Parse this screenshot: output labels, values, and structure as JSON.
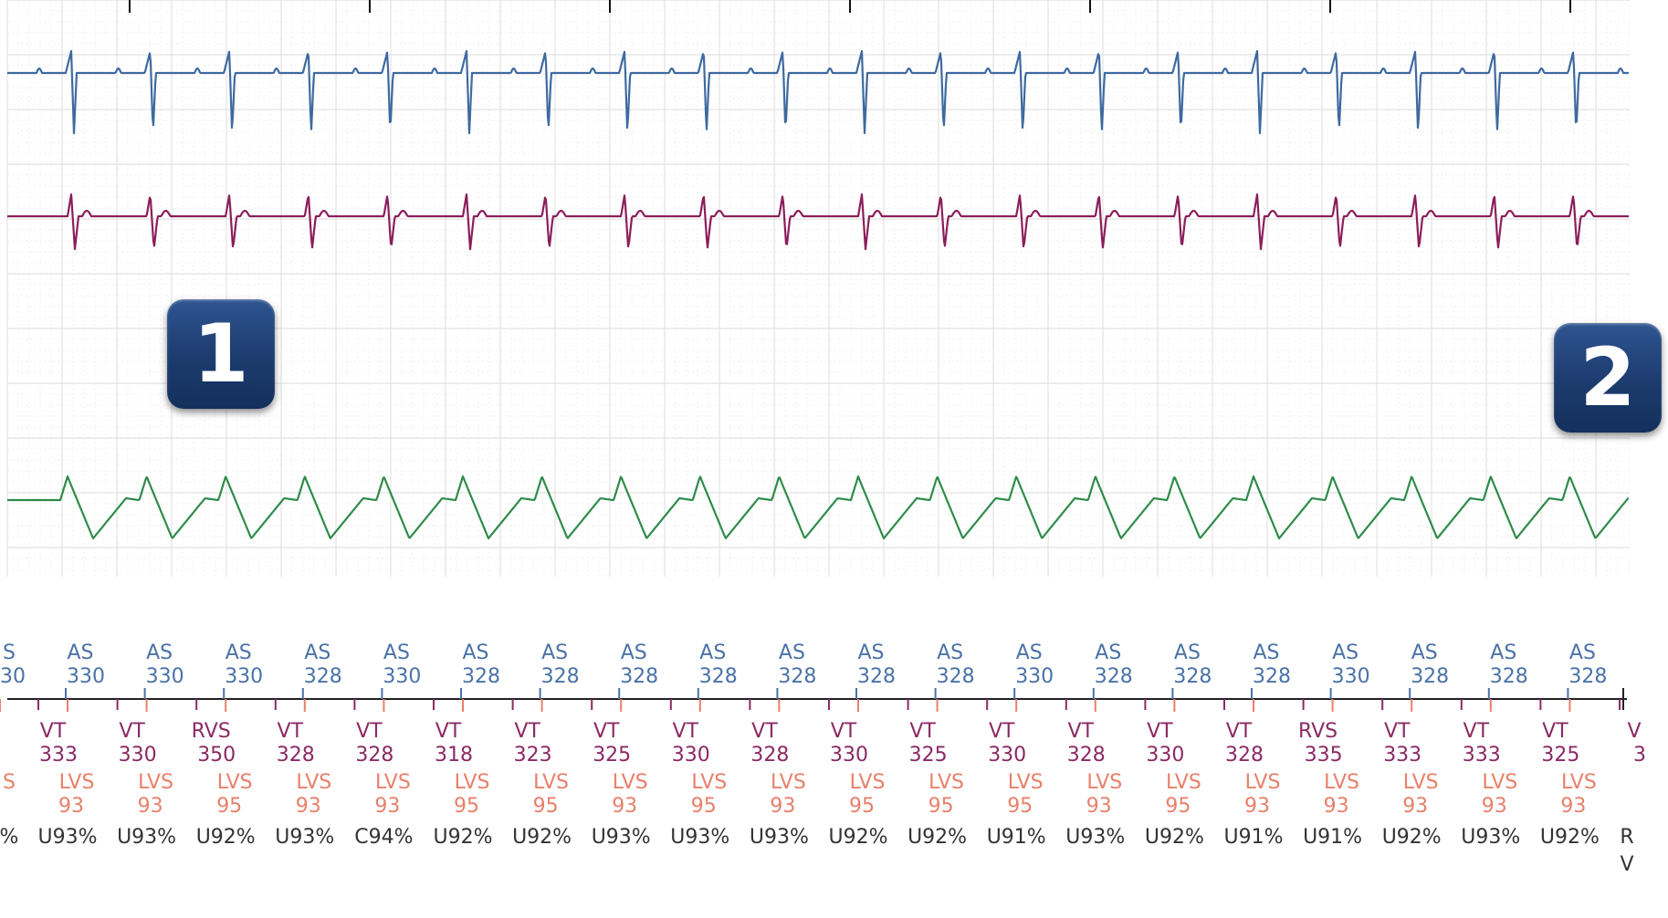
{
  "colors": {
    "trace_atrial": "#3d6aa0",
    "trace_ventricular": "#8b1e5a",
    "trace_third": "#2e8b4a",
    "marker_atrial": "#4a72a8",
    "marker_ventricular": "#8b2a64",
    "marker_lv": "#e8806a",
    "marker_pct": "#333333",
    "grid_major": "#e2e2e2",
    "grid_minor": "#eeeeee",
    "badge": "#1c3b6e"
  },
  "badges": [
    "1",
    "2"
  ],
  "atrial_markers": [
    {
      "type": "S",
      "value": "30"
    },
    {
      "type": "AS",
      "value": "330"
    },
    {
      "type": "AS",
      "value": "330"
    },
    {
      "type": "AS",
      "value": "330"
    },
    {
      "type": "AS",
      "value": "328"
    },
    {
      "type": "AS",
      "value": "330"
    },
    {
      "type": "AS",
      "value": "328"
    },
    {
      "type": "AS",
      "value": "328"
    },
    {
      "type": "AS",
      "value": "328"
    },
    {
      "type": "AS",
      "value": "328"
    },
    {
      "type": "AS",
      "value": "328"
    },
    {
      "type": "AS",
      "value": "328"
    },
    {
      "type": "AS",
      "value": "328"
    },
    {
      "type": "AS",
      "value": "330"
    },
    {
      "type": "AS",
      "value": "328"
    },
    {
      "type": "AS",
      "value": "328"
    },
    {
      "type": "AS",
      "value": "328"
    },
    {
      "type": "AS",
      "value": "330"
    },
    {
      "type": "AS",
      "value": "328"
    },
    {
      "type": "AS",
      "value": "328"
    },
    {
      "type": "AS",
      "value": "328"
    }
  ],
  "ventricular_markers": [
    {
      "type": "VT",
      "value": "333"
    },
    {
      "type": "VT",
      "value": "330"
    },
    {
      "type": "RVS",
      "value": "350"
    },
    {
      "type": "VT",
      "value": "328"
    },
    {
      "type": "VT",
      "value": "328"
    },
    {
      "type": "VT",
      "value": "318"
    },
    {
      "type": "VT",
      "value": "323"
    },
    {
      "type": "VT",
      "value": "325"
    },
    {
      "type": "VT",
      "value": "330"
    },
    {
      "type": "VT",
      "value": "328"
    },
    {
      "type": "VT",
      "value": "330"
    },
    {
      "type": "VT",
      "value": "325"
    },
    {
      "type": "VT",
      "value": "330"
    },
    {
      "type": "VT",
      "value": "328"
    },
    {
      "type": "VT",
      "value": "330"
    },
    {
      "type": "VT",
      "value": "328"
    },
    {
      "type": "RVS",
      "value": "335"
    },
    {
      "type": "VT",
      "value": "333"
    },
    {
      "type": "VT",
      "value": "333"
    },
    {
      "type": "VT",
      "value": "325"
    },
    {
      "type": "V",
      "value": "3"
    }
  ],
  "lv_markers": [
    {
      "type": "S",
      "value": ""
    },
    {
      "type": "LVS",
      "value": "93"
    },
    {
      "type": "LVS",
      "value": "93"
    },
    {
      "type": "LVS",
      "value": "95"
    },
    {
      "type": "LVS",
      "value": "93"
    },
    {
      "type": "LVS",
      "value": "93"
    },
    {
      "type": "LVS",
      "value": "95"
    },
    {
      "type": "LVS",
      "value": "95"
    },
    {
      "type": "LVS",
      "value": "93"
    },
    {
      "type": "LVS",
      "value": "95"
    },
    {
      "type": "LVS",
      "value": "93"
    },
    {
      "type": "LVS",
      "value": "95"
    },
    {
      "type": "LVS",
      "value": "95"
    },
    {
      "type": "LVS",
      "value": "95"
    },
    {
      "type": "LVS",
      "value": "93"
    },
    {
      "type": "LVS",
      "value": "95"
    },
    {
      "type": "LVS",
      "value": "93"
    },
    {
      "type": "LVS",
      "value": "93"
    },
    {
      "type": "LVS",
      "value": "93"
    },
    {
      "type": "LVS",
      "value": "93"
    },
    {
      "type": "LVS",
      "value": "93"
    }
  ],
  "pct_labels": [
    "%",
    "U93%",
    "U93%",
    "U92%",
    "U93%",
    "C94%",
    "U92%",
    "U92%",
    "U93%",
    "U93%",
    "U93%",
    "U92%",
    "U92%",
    "U91%",
    "U93%",
    "U92%",
    "U91%",
    "U91%",
    "U92%",
    "U93%",
    "U92%",
    "R"
  ],
  "pct_extra": "V"
}
